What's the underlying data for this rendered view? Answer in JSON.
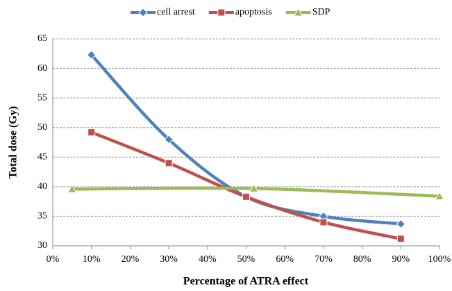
{
  "chart_data": {
    "type": "line",
    "smooth": true,
    "xlabel": "Percentage of ATRA effect",
    "ylabel": "Total dose (Gy)",
    "xlim": [
      0,
      100
    ],
    "xticks": [
      {
        "value": 0,
        "label": "0%"
      },
      {
        "value": 10,
        "label": "10%"
      },
      {
        "value": 20,
        "label": "20%"
      },
      {
        "value": 30,
        "label": "30%"
      },
      {
        "value": 40,
        "label": "40%"
      },
      {
        "value": 50,
        "label": "50%"
      },
      {
        "value": 60,
        "label": "60%"
      },
      {
        "value": 70,
        "label": "70%"
      },
      {
        "value": 80,
        "label": "80%"
      },
      {
        "value": 90,
        "label": "90%"
      },
      {
        "value": 100,
        "label": "100%"
      }
    ],
    "ylim": [
      30,
      65
    ],
    "yticks": [
      30,
      35,
      40,
      45,
      50,
      55,
      60,
      65
    ],
    "grid": true,
    "legend": "top",
    "series": [
      {
        "name": "cell arrest",
        "color": "#4f81bd",
        "marker": "diamond",
        "x": [
          10,
          30,
          50,
          70,
          90
        ],
        "values": [
          62.3,
          48,
          38.3,
          35,
          33.7
        ]
      },
      {
        "name": "apoptosis",
        "color": "#c0504d",
        "marker": "square",
        "x": [
          10,
          30,
          50,
          70,
          90
        ],
        "values": [
          49.2,
          44,
          38.3,
          34,
          31.2
        ]
      },
      {
        "name": "SDP",
        "color": "#9bbb59",
        "marker": "triangle",
        "x": [
          5,
          52,
          100
        ],
        "values": [
          39.6,
          39.7,
          38.4
        ]
      }
    ]
  }
}
